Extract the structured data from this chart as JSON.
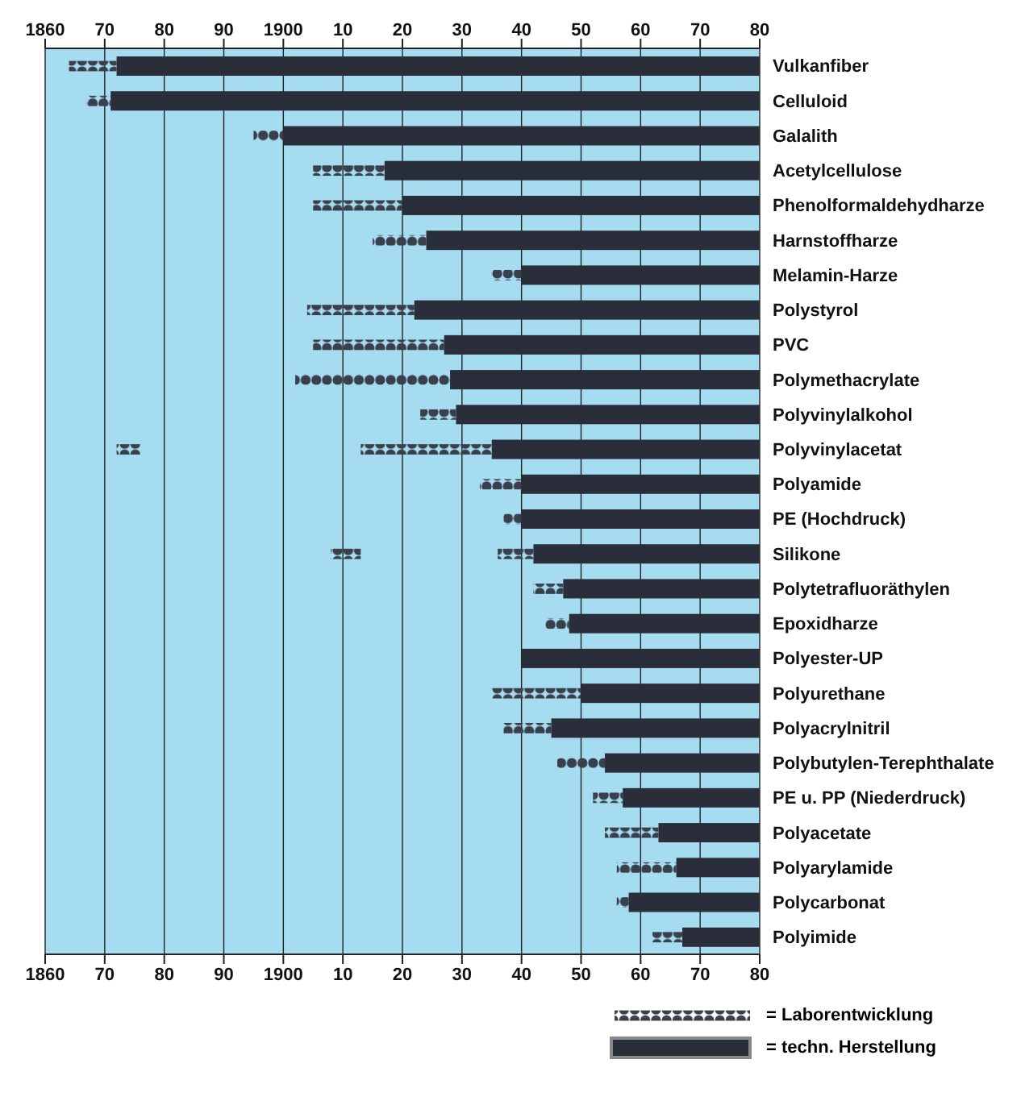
{
  "chart_data": {
    "type": "bar",
    "orientation": "horizontal",
    "categories": [
      "Vulkanfiber",
      "Celluloid",
      "Galalith",
      "Acetylcellulose",
      "Phenolformaldehydharze",
      "Harnstoffharze",
      "Melamin-Harze",
      "Polystyrol",
      "PVC",
      "Polymethacrylate",
      "Polyvinylalkohol",
      "Polyvinylacetat",
      "Polyamide",
      "PE (Hochdruck)",
      "Silikone",
      "Polytetrafluoräthylen",
      "Epoxidharze",
      "Polyester-UP",
      "Polyurethane",
      "Polyacrylnitril",
      "Polybutylen-Terephthalate",
      "PE u. PP (Niederdruck)",
      "Polyacetate",
      "Polyarylamide",
      "Polycarbonat",
      "Polyimide"
    ],
    "series": [
      {
        "name": "= Laborentwicklung",
        "color": "#3a3f4c",
        "marker": "circle",
        "base": [
          1864,
          1867,
          1895,
          1905,
          1905,
          1915,
          1935,
          1904,
          1905,
          1902,
          1923,
          1913,
          1933,
          1937,
          1936,
          1942,
          1944,
          null,
          1935,
          1937,
          1946,
          1952,
          1954,
          1956,
          1956,
          1962
        ],
        "values": [
          8,
          4,
          5,
          12,
          15,
          9,
          5,
          18,
          22,
          26,
          6,
          22,
          7,
          3,
          6,
          5,
          4,
          null,
          15,
          8,
          8,
          5,
          9,
          10,
          2,
          5
        ]
      },
      {
        "color": "#3a3f4c",
        "marker": "circle",
        "base": [
          null,
          null,
          null,
          null,
          null,
          null,
          null,
          null,
          null,
          null,
          null,
          1872,
          null,
          null,
          1908,
          null,
          null,
          null,
          null,
          null,
          null,
          null,
          null,
          null,
          null,
          null
        ],
        "values": [
          null,
          null,
          null,
          null,
          null,
          null,
          null,
          null,
          null,
          null,
          null,
          4,
          null,
          null,
          5,
          null,
          null,
          null,
          null,
          null,
          null,
          null,
          null,
          null,
          null,
          null
        ]
      },
      {
        "name": "= techn. Herstellung",
        "color": "#2a2e3a",
        "marker": "none",
        "base": [
          1872,
          1871,
          1900,
          1917,
          1920,
          1924,
          1940,
          1922,
          1927,
          1928,
          1929,
          1935,
          1940,
          1940,
          1942,
          1947,
          1948,
          1940,
          1950,
          1945,
          1954,
          1957,
          1963,
          1966,
          1958,
          1967
        ],
        "values": [
          108,
          109,
          80,
          63,
          60,
          56,
          40,
          58,
          53,
          52,
          51,
          45,
          40,
          40,
          38,
          33,
          32,
          40,
          30,
          35,
          26,
          23,
          17,
          14,
          22,
          13
        ]
      }
    ],
    "xlim": [
      1860,
      1980
    ],
    "xticks": [
      {
        "value": 1860,
        "label": "1860"
      },
      {
        "value": 1870,
        "label": "70"
      },
      {
        "value": 1880,
        "label": "80"
      },
      {
        "value": 1890,
        "label": "90"
      },
      {
        "value": 1900,
        "label": "1900"
      },
      {
        "value": 1910,
        "label": "10"
      },
      {
        "value": 1920,
        "label": "20"
      },
      {
        "value": 1930,
        "label": "30"
      },
      {
        "value": 1940,
        "label": "40"
      },
      {
        "value": 1950,
        "label": "50"
      },
      {
        "value": 1960,
        "label": "60"
      },
      {
        "value": 1970,
        "label": "70"
      },
      {
        "value": 1980,
        "label": "80"
      }
    ],
    "x2lim": [
      1860,
      1980
    ],
    "x2ticks": [
      {
        "value": 1860,
        "label": "1860"
      },
      {
        "value": 1870,
        "label": "70"
      },
      {
        "value": 1880,
        "label": "80"
      },
      {
        "value": 1890,
        "label": "90"
      },
      {
        "value": 1900,
        "label": "1900"
      },
      {
        "value": 1910,
        "label": "10"
      },
      {
        "value": 1920,
        "label": "20"
      },
      {
        "value": 1930,
        "label": "30"
      },
      {
        "value": 1940,
        "label": "40"
      },
      {
        "value": 1950,
        "label": "50"
      },
      {
        "value": 1960,
        "label": "60"
      },
      {
        "value": 1970,
        "label": "70"
      },
      {
        "value": 1980,
        "label": "80"
      }
    ],
    "grid": "x",
    "legend": "bottom right"
  }
}
